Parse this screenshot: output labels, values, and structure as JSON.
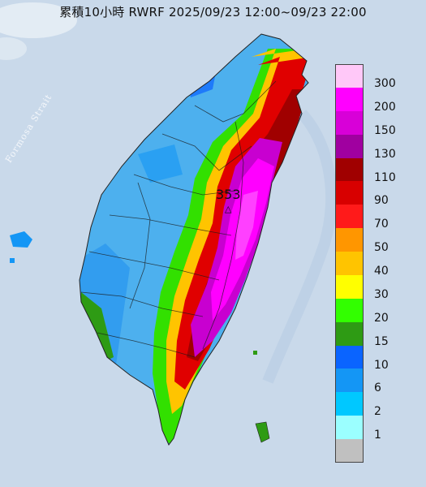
{
  "title": "累積10小時 RWRF 2025/09/23 12:00~09/23 22:00",
  "map": {
    "strait_label": "Formosa Strait",
    "peak_value": "353"
  },
  "legend": {
    "items": [
      {
        "label": "300",
        "color": "#ffc8f8"
      },
      {
        "label": "200",
        "color": "#ff00ff"
      },
      {
        "label": "150",
        "color": "#d800d8"
      },
      {
        "label": "130",
        "color": "#a000a0"
      },
      {
        "label": "110",
        "color": "#a00000"
      },
      {
        "label": "90",
        "color": "#d80000"
      },
      {
        "label": "70",
        "color": "#ff1a1a"
      },
      {
        "label": "50",
        "color": "#ff9600"
      },
      {
        "label": "40",
        "color": "#ffc400"
      },
      {
        "label": "30",
        "color": "#ffff00"
      },
      {
        "label": "20",
        "color": "#32ff00"
      },
      {
        "label": "15",
        "color": "#2e9b14"
      },
      {
        "label": "10",
        "color": "#0a64ff"
      },
      {
        "label": "6",
        "color": "#1496f5"
      },
      {
        "label": "2",
        "color": "#00c8ff"
      },
      {
        "label": "1",
        "color": "#9bffff"
      },
      {
        "label": "",
        "color": "#c0c0c0"
      }
    ]
  },
  "colors": {
    "sea": "#c9d9ea",
    "west_plain": "#4db0ee"
  }
}
